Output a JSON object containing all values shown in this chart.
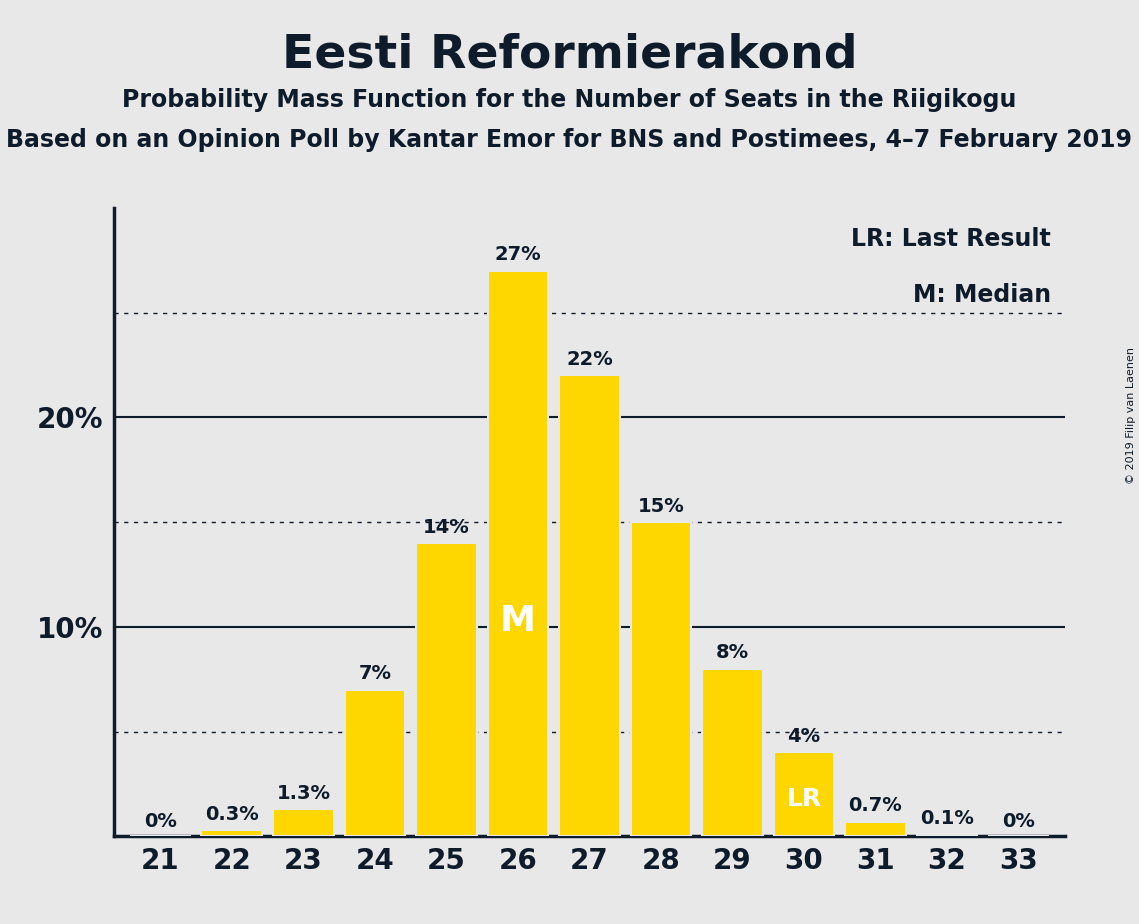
{
  "title": "Eesti Reformierakond",
  "subtitle": "Probability Mass Function for the Number of Seats in the Riigikogu",
  "subsubtitle": "Based on an Opinion Poll by Kantar Emor for BNS and Postimees, 4–7 February 2019",
  "copyright": "© 2019 Filip van Laenen",
  "seats": [
    21,
    22,
    23,
    24,
    25,
    26,
    27,
    28,
    29,
    30,
    31,
    32,
    33
  ],
  "probabilities": [
    0.0,
    0.3,
    1.3,
    7.0,
    14.0,
    27.0,
    22.0,
    15.0,
    8.0,
    4.0,
    0.7,
    0.1,
    0.0
  ],
  "labels": [
    "0%",
    "0.3%",
    "1.3%",
    "7%",
    "14%",
    "27%",
    "22%",
    "15%",
    "8%",
    "4%",
    "0.7%",
    "0.1%",
    "0%"
  ],
  "bar_color": "#FFD700",
  "background_color": "#E8E8E8",
  "text_color": "#0D1B2A",
  "median_seat": 26,
  "lr_seat": 30,
  "legend_lr": "LR: Last Result",
  "legend_m": "M: Median",
  "solid_lines": [
    10,
    20
  ],
  "dotted_lines": [
    5,
    15,
    25
  ],
  "ylim_max": 30.0,
  "ylabel_ticks": [
    10,
    20
  ],
  "ylabel_tick_labels": [
    "10%",
    "20%"
  ]
}
